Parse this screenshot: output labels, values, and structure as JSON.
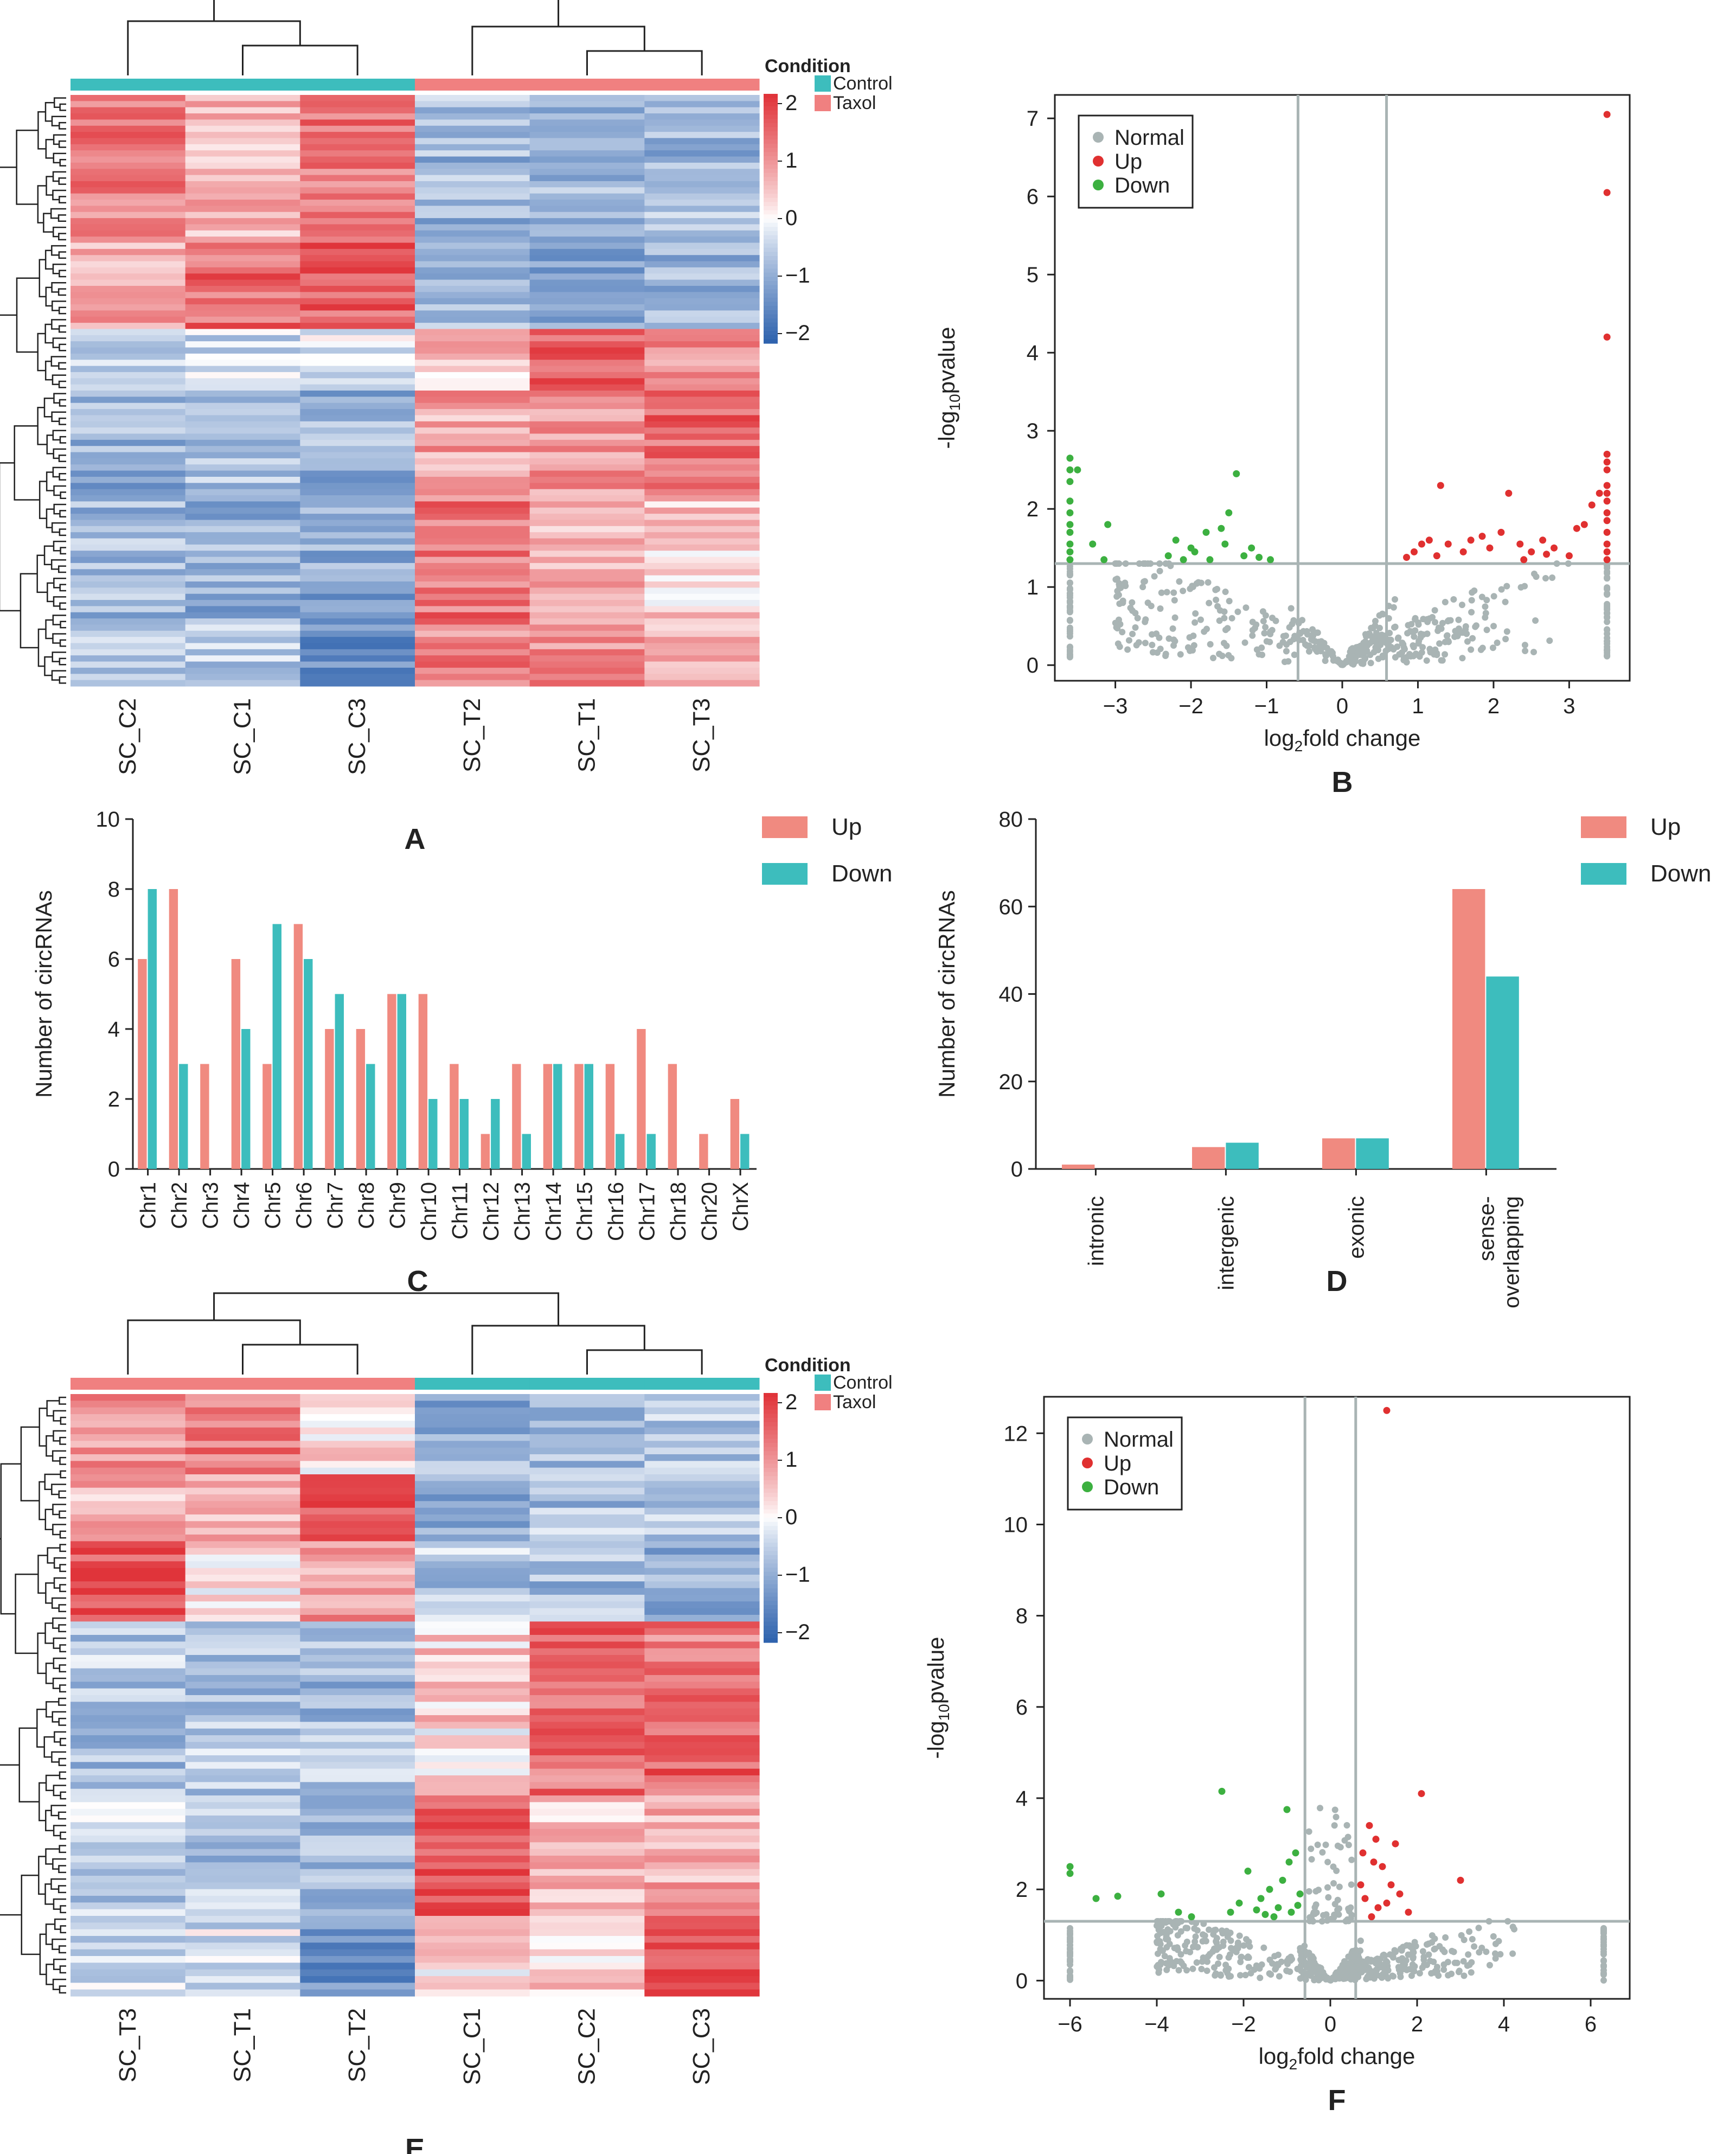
{
  "colors": {
    "control": "#3DBDBD",
    "taxol": "#F08080",
    "up_bar": "#F08A80",
    "down_bar": "#3DBDBD",
    "normal_pt": "#A9B4B4",
    "up_pt": "#E03030",
    "down_pt": "#3CB040",
    "heat_high": "#E0343A",
    "heat_mid": "#FFFFFF",
    "heat_low": "#2F63AE",
    "axis": "#222222",
    "threshold": "#A9B4B4"
  },
  "chart_data": [
    {
      "panel": "A",
      "type": "heatmap",
      "columns": [
        "SC_C2",
        "SC_C1",
        "SC_C3",
        "SC_T2",
        "SC_T1",
        "SC_T3"
      ],
      "column_condition": [
        "Control",
        "Control",
        "Control",
        "Taxol",
        "Taxol",
        "Taxol"
      ],
      "legend_title": "Condition",
      "legend_entries": [
        "Control",
        "Taxol"
      ],
      "color_scale_ticks": [
        "2",
        "1",
        "0",
        "−1",
        "−2"
      ],
      "color_range": [
        -2,
        2
      ],
      "row_blocks": [
        {
          "rows": 24,
          "values": [
            1.2,
            0.6,
            1.3,
            -0.8,
            -0.9,
            -0.8
          ]
        },
        {
          "rows": 14,
          "values": [
            0.7,
            1.4,
            1.5,
            -0.9,
            -1.0,
            -0.9
          ]
        },
        {
          "rows": 10,
          "values": [
            -0.5,
            -0.4,
            -0.3,
            0.5,
            1.6,
            1.0
          ]
        },
        {
          "rows": 18,
          "values": [
            -0.9,
            -0.7,
            -0.9,
            0.8,
            1.0,
            1.4
          ]
        },
        {
          "rows": 20,
          "values": [
            -0.8,
            -0.9,
            -1.0,
            1.3,
            0.6,
            0.4
          ]
        },
        {
          "rows": 10,
          "values": [
            -0.6,
            -0.5,
            -1.4,
            1.1,
            1.0,
            0.6
          ]
        }
      ]
    },
    {
      "panel": "B",
      "type": "scatter",
      "subtype": "volcano",
      "xlabel": "log2fold change",
      "ylabel": "-log10pvalue",
      "xticks": [
        -3,
        -2,
        -1,
        0,
        1,
        2,
        3
      ],
      "yticks": [
        0,
        1,
        2,
        3,
        4,
        5,
        6,
        7
      ],
      "xlim": [
        -3.8,
        3.8
      ],
      "ylim": [
        -0.2,
        7.3
      ],
      "vlines": [
        -0.585,
        0.585
      ],
      "hline": 1.3,
      "legend": [
        "Normal",
        "Up",
        "Down"
      ],
      "up_points": [
        [
          3.5,
          7.05
        ],
        [
          3.5,
          6.05
        ],
        [
          3.5,
          4.2
        ],
        [
          3.5,
          2.7
        ],
        [
          3.5,
          2.6
        ],
        [
          3.5,
          2.5
        ],
        [
          3.5,
          2.3
        ],
        [
          3.5,
          2.2
        ],
        [
          3.5,
          2.1
        ],
        [
          3.5,
          1.95
        ],
        [
          3.5,
          1.85
        ],
        [
          3.5,
          1.7
        ],
        [
          3.5,
          1.55
        ],
        [
          3.5,
          1.45
        ],
        [
          3.5,
          1.35
        ],
        [
          3.4,
          2.2
        ],
        [
          3.3,
          2.05
        ],
        [
          3.2,
          1.8
        ],
        [
          3.1,
          1.75
        ],
        [
          1.3,
          2.3
        ],
        [
          2.2,
          2.2
        ],
        [
          1.85,
          1.65
        ],
        [
          2.1,
          1.7
        ],
        [
          1.05,
          1.55
        ],
        [
          1.15,
          1.6
        ],
        [
          0.95,
          1.45
        ],
        [
          1.4,
          1.55
        ],
        [
          1.6,
          1.45
        ],
        [
          1.7,
          1.6
        ],
        [
          1.95,
          1.5
        ],
        [
          2.35,
          1.55
        ],
        [
          2.5,
          1.45
        ],
        [
          2.65,
          1.6
        ],
        [
          2.8,
          1.5
        ],
        [
          3.0,
          1.4
        ],
        [
          1.25,
          1.4
        ],
        [
          0.85,
          1.38
        ],
        [
          2.4,
          1.35
        ],
        [
          2.7,
          1.42
        ]
      ],
      "down_points": [
        [
          -3.6,
          2.65
        ],
        [
          -3.6,
          2.5
        ],
        [
          -3.6,
          2.35
        ],
        [
          -3.6,
          2.1
        ],
        [
          -3.6,
          1.95
        ],
        [
          -3.6,
          1.8
        ],
        [
          -3.6,
          1.7
        ],
        [
          -3.6,
          1.55
        ],
        [
          -3.6,
          1.45
        ],
        [
          -3.6,
          1.35
        ],
        [
          -3.5,
          2.5
        ],
        [
          -3.1,
          1.8
        ],
        [
          -3.3,
          1.55
        ],
        [
          -3.15,
          1.35
        ],
        [
          -2.2,
          1.6
        ],
        [
          -2.0,
          1.5
        ],
        [
          -1.8,
          1.7
        ],
        [
          -1.6,
          1.75
        ],
        [
          -1.4,
          2.45
        ],
        [
          -1.5,
          1.95
        ],
        [
          -1.75,
          1.35
        ],
        [
          -1.95,
          1.45
        ],
        [
          -2.3,
          1.4
        ],
        [
          -1.3,
          1.4
        ],
        [
          -1.1,
          1.38
        ],
        [
          -0.95,
          1.35
        ],
        [
          -1.55,
          1.55
        ],
        [
          -2.1,
          1.35
        ],
        [
          -1.2,
          1.5
        ]
      ],
      "normal_clusters": [
        {
          "x": [
            -3.6,
            -3.6
          ],
          "y": [
            0.1,
            1.3
          ],
          "n": 40
        },
        {
          "x": [
            3.5,
            3.5
          ],
          "y": [
            0.1,
            1.3
          ],
          "n": 40
        },
        {
          "x": [
            -3.0,
            -0.1
          ],
          "y": [
            0.0,
            1.3
          ],
          "n": 170,
          "shape": "v-left"
        },
        {
          "x": [
            0.1,
            3.3
          ],
          "y": [
            0.0,
            1.3
          ],
          "n": 190,
          "shape": "v-right"
        }
      ]
    },
    {
      "panel": "C",
      "type": "bar",
      "categories": [
        "Chr1",
        "Chr2",
        "Chr3",
        "Chr4",
        "Chr5",
        "Chr6",
        "Chr7",
        "Chr8",
        "Chr9",
        "Chr10",
        "Chr11",
        "Chr12",
        "Chr13",
        "Chr14",
        "Chr15",
        "Chr16",
        "Chr17",
        "Chr18",
        "Chr20",
        "ChrX"
      ],
      "series": [
        {
          "name": "Up",
          "values": [
            6,
            8,
            3,
            6,
            3,
            7,
            4,
            4,
            5,
            5,
            3,
            1,
            3,
            3,
            3,
            3,
            4,
            3,
            1,
            2
          ]
        },
        {
          "name": "Down",
          "values": [
            8,
            3,
            0,
            4,
            7,
            6,
            5,
            3,
            5,
            2,
            2,
            2,
            1,
            3,
            3,
            1,
            1,
            0,
            0,
            1
          ]
        }
      ],
      "ylabel": "Number of circRNAs",
      "ylim": [
        0,
        10
      ],
      "yticks": [
        0,
        2,
        4,
        6,
        8,
        10
      ]
    },
    {
      "panel": "D",
      "type": "bar",
      "categories": [
        "intronic",
        "intergenic",
        "exonic",
        "sense-overlapping"
      ],
      "category_lines": [
        [
          "intronic"
        ],
        [
          "intergenic"
        ],
        [
          "exonic"
        ],
        [
          "sense-",
          "overlapping"
        ]
      ],
      "series": [
        {
          "name": "Up",
          "values": [
            1,
            5,
            7,
            64
          ]
        },
        {
          "name": "Down",
          "values": [
            0,
            6,
            7,
            44
          ]
        }
      ],
      "ylabel": "Number of circRNAs",
      "ylim": [
        0,
        80
      ],
      "yticks": [
        0,
        20,
        40,
        60,
        80
      ]
    },
    {
      "panel": "E",
      "type": "heatmap",
      "columns": [
        "SC_T3",
        "SC_T1",
        "SC_T2",
        "SC_C1",
        "SC_C2",
        "SC_C3"
      ],
      "column_condition": [
        "Taxol",
        "Taxol",
        "Taxol",
        "Control",
        "Control",
        "Control"
      ],
      "legend_title": "Condition",
      "legend_entries": [
        "Control",
        "Taxol"
      ],
      "color_scale_ticks": [
        "2",
        "1",
        "0",
        "−1",
        "−2"
      ],
      "color_range": [
        -2,
        2
      ],
      "row_blocks": [
        {
          "rows": 12,
          "values": [
            1.0,
            1.2,
            0.3,
            -0.9,
            -0.7,
            -0.6
          ]
        },
        {
          "rows": 10,
          "values": [
            0.6,
            0.8,
            1.6,
            -0.9,
            -0.7,
            -0.5
          ]
        },
        {
          "rows": 12,
          "values": [
            1.7,
            0.2,
            0.9,
            -0.6,
            -0.8,
            -0.9
          ]
        },
        {
          "rows": 16,
          "values": [
            -0.6,
            -0.7,
            -0.8,
            0.4,
            1.5,
            1.2
          ]
        },
        {
          "rows": 10,
          "values": [
            -0.7,
            -0.6,
            -0.5,
            0.1,
            1.3,
            1.5
          ]
        },
        {
          "rows": 18,
          "values": [
            -0.5,
            -0.7,
            -0.9,
            1.6,
            0.5,
            0.7
          ]
        },
        {
          "rows": 12,
          "values": [
            -0.4,
            -0.3,
            -1.3,
            0.2,
            0.4,
            1.5
          ]
        }
      ]
    },
    {
      "panel": "F",
      "type": "scatter",
      "subtype": "volcano",
      "xlabel": "log2fold change",
      "ylabel": "-log10pvalue",
      "xticks": [
        -6,
        -4,
        -2,
        0,
        2,
        4,
        6
      ],
      "yticks": [
        0,
        2,
        4,
        6,
        8,
        10,
        12
      ],
      "xlim": [
        -6.6,
        6.9
      ],
      "ylim": [
        -0.4,
        12.8
      ],
      "vlines": [
        -0.585,
        0.585
      ],
      "hline": 1.3,
      "legend": [
        "Normal",
        "Up",
        "Down"
      ],
      "up_points": [
        [
          1.3,
          12.5
        ],
        [
          2.1,
          4.1
        ],
        [
          3.0,
          2.2
        ],
        [
          1.8,
          1.5
        ],
        [
          1.6,
          1.9
        ],
        [
          1.2,
          2.5
        ],
        [
          1.0,
          2.6
        ],
        [
          1.5,
          3.0
        ],
        [
          0.9,
          3.4
        ],
        [
          0.8,
          1.8
        ],
        [
          1.1,
          1.6
        ],
        [
          0.7,
          2.1
        ],
        [
          1.3,
          1.7
        ],
        [
          0.95,
          1.4
        ],
        [
          1.4,
          2.1
        ],
        [
          0.75,
          2.8
        ],
        [
          1.05,
          3.1
        ]
      ],
      "down_points": [
        [
          -6.0,
          2.5
        ],
        [
          -6.0,
          2.35
        ],
        [
          -5.4,
          1.8
        ],
        [
          -4.9,
          1.85
        ],
        [
          -3.9,
          1.9
        ],
        [
          -2.5,
          4.15
        ],
        [
          -3.5,
          1.5
        ],
        [
          -3.2,
          1.4
        ],
        [
          -2.1,
          1.7
        ],
        [
          -1.9,
          2.4
        ],
        [
          -1.6,
          1.8
        ],
        [
          -1.4,
          2.0
        ],
        [
          -1.2,
          1.6
        ],
        [
          -1.0,
          3.75
        ],
        [
          -1.1,
          2.2
        ],
        [
          -0.9,
          1.5
        ],
        [
          -0.8,
          2.8
        ],
        [
          -1.3,
          1.4
        ],
        [
          -0.7,
          1.9
        ],
        [
          -1.5,
          1.45
        ],
        [
          -0.95,
          2.6
        ],
        [
          -1.7,
          1.55
        ],
        [
          -2.3,
          1.5
        ],
        [
          -0.75,
          1.65
        ]
      ],
      "normal_clusters": [
        {
          "x": [
            -6.0,
            -6.0
          ],
          "y": [
            0.0,
            1.2
          ],
          "n": 30
        },
        {
          "x": [
            6.3,
            6.3
          ],
          "y": [
            0.0,
            1.2
          ],
          "n": 30
        },
        {
          "x": [
            -4.0,
            -0.1
          ],
          "y": [
            0.0,
            1.3
          ],
          "n": 220,
          "shape": "v-left"
        },
        {
          "x": [
            0.1,
            4.5
          ],
          "y": [
            0.0,
            1.3
          ],
          "n": 220,
          "shape": "v-right"
        },
        {
          "x": [
            -0.5,
            0.5
          ],
          "y": [
            1.3,
            3.8
          ],
          "n": 60,
          "shape": "spike"
        }
      ]
    }
  ],
  "panels": {
    "A": {
      "letter": "A"
    },
    "B": {
      "letter": "B"
    },
    "C": {
      "letter": "C"
    },
    "D": {
      "letter": "D"
    },
    "E": {
      "letter": "E"
    },
    "F": {
      "letter": "F"
    }
  },
  "legends": {
    "condition_title": "Condition",
    "control": "Control",
    "taxol": "Taxol",
    "normal": "Normal",
    "up": "Up",
    "down": "Down"
  }
}
